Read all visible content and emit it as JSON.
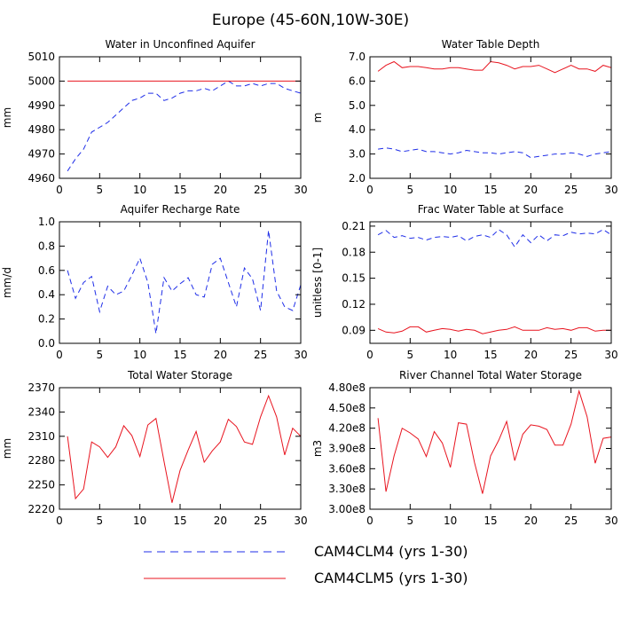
{
  "title": "Europe (45-60N,10W-30E)",
  "colors": {
    "clm4": "#1f2ee8",
    "clm5": "#e8141f"
  },
  "legend": [
    {
      "label": "CAM4CLM4 (yrs 1-30)",
      "style": "dashed",
      "color": "#1f2ee8"
    },
    {
      "label": "CAM4CLM5 (yrs 1-30)",
      "style": "solid",
      "color": "#e8141f"
    }
  ],
  "chart_data": [
    {
      "type": "line",
      "title": "Water in Unconfined Aquifer",
      "ylabel": "mm",
      "xlim": [
        0,
        30
      ],
      "ylim": [
        4960,
        5010
      ],
      "xticks": [
        0,
        5,
        10,
        15,
        20,
        25,
        30
      ],
      "yticks": [
        4960,
        4970,
        4980,
        4990,
        5000,
        5010
      ],
      "ytick_labels": [
        "4960",
        "4970",
        "4980",
        "4990",
        "5000",
        "5010"
      ],
      "x": [
        1,
        2,
        3,
        4,
        5,
        6,
        7,
        8,
        9,
        10,
        11,
        12,
        13,
        14,
        15,
        16,
        17,
        18,
        19,
        20,
        21,
        22,
        23,
        24,
        25,
        26,
        27,
        28,
        29,
        30
      ],
      "series": [
        {
          "name": "CAM4CLM4 (yrs 1-30)",
          "style": "dashed",
          "values": [
            4963,
            4968,
            4972,
            4979,
            4981,
            4983,
            4986,
            4989,
            4992,
            4993,
            4995,
            4995,
            4992,
            4993,
            4995,
            4996,
            4996,
            4997,
            4996,
            4998,
            5000,
            4998,
            4998,
            4999,
            4998,
            4999,
            4999,
            4997,
            4996,
            4995
          ]
        },
        {
          "name": "CAM4CLM5 (yrs 1-30)",
          "style": "solid",
          "values": [
            5000,
            5000,
            5000,
            5000,
            5000,
            5000,
            5000,
            5000,
            5000,
            5000,
            5000,
            5000,
            5000,
            5000,
            5000,
            5000,
            5000,
            5000,
            5000,
            5000,
            5000,
            5000,
            5000,
            5000,
            5000,
            5000,
            5000,
            5000,
            5000,
            5000
          ]
        }
      ]
    },
    {
      "type": "line",
      "title": "Water Table Depth",
      "ylabel": "m",
      "xlim": [
        0,
        30
      ],
      "ylim": [
        2.0,
        7.0
      ],
      "xticks": [
        0,
        5,
        10,
        15,
        20,
        25,
        30
      ],
      "yticks": [
        2,
        3,
        4,
        5,
        6,
        7
      ],
      "ytick_labels": [
        "2.0",
        "3.0",
        "4.0",
        "5.0",
        "6.0",
        "7.0"
      ],
      "x": [
        1,
        2,
        3,
        4,
        5,
        6,
        7,
        8,
        9,
        10,
        11,
        12,
        13,
        14,
        15,
        16,
        17,
        18,
        19,
        20,
        21,
        22,
        23,
        24,
        25,
        26,
        27,
        28,
        29,
        30
      ],
      "series": [
        {
          "name": "CAM4CLM4 (yrs 1-30)",
          "style": "dashed",
          "values": [
            3.2,
            3.25,
            3.2,
            3.1,
            3.15,
            3.2,
            3.1,
            3.1,
            3.05,
            3.0,
            3.05,
            3.15,
            3.1,
            3.05,
            3.05,
            3.0,
            3.05,
            3.1,
            3.05,
            2.85,
            2.9,
            2.95,
            3.0,
            3.0,
            3.05,
            3.0,
            2.9,
            3.0,
            3.05,
            3.1
          ]
        },
        {
          "name": "CAM4CLM5 (yrs 1-30)",
          "style": "solid",
          "values": [
            6.4,
            6.65,
            6.8,
            6.55,
            6.6,
            6.6,
            6.55,
            6.5,
            6.5,
            6.55,
            6.55,
            6.5,
            6.45,
            6.45,
            6.8,
            6.75,
            6.65,
            6.5,
            6.6,
            6.6,
            6.65,
            6.5,
            6.35,
            6.5,
            6.65,
            6.5,
            6.5,
            6.4,
            6.65,
            6.55
          ]
        }
      ]
    },
    {
      "type": "line",
      "title": "Aquifer Recharge Rate",
      "ylabel": "mm/d",
      "xlim": [
        0,
        30
      ],
      "ylim": [
        0.0,
        1.0
      ],
      "xticks": [
        0,
        5,
        10,
        15,
        20,
        25,
        30
      ],
      "yticks": [
        0,
        0.2,
        0.4,
        0.6,
        0.8,
        1.0
      ],
      "ytick_labels": [
        "0.0",
        "0.2",
        "0.4",
        "0.6",
        "0.8",
        "1.0"
      ],
      "x": [
        1,
        2,
        3,
        4,
        5,
        6,
        7,
        8,
        9,
        10,
        11,
        12,
        13,
        14,
        15,
        16,
        17,
        18,
        19,
        20,
        21,
        22,
        23,
        24,
        25,
        26,
        27,
        28,
        29,
        30
      ],
      "series": [
        {
          "name": "CAM4CLM4 (yrs 1-30)",
          "style": "dashed",
          "values": [
            0.6,
            0.37,
            0.5,
            0.55,
            0.26,
            0.47,
            0.4,
            0.43,
            0.56,
            0.7,
            0.5,
            0.08,
            0.54,
            0.43,
            0.49,
            0.54,
            0.4,
            0.38,
            0.65,
            0.7,
            0.5,
            0.3,
            0.62,
            0.53,
            0.27,
            0.93,
            0.43,
            0.3,
            0.27,
            0.48
          ]
        },
        {
          "name": "CAM4CLM5 (yrs 1-30)",
          "style": "solid",
          "values": [
            0,
            0,
            0,
            0,
            0,
            0,
            0,
            0,
            0,
            0,
            0,
            0,
            0,
            0,
            0,
            0,
            0,
            0,
            0,
            0,
            0,
            0,
            0,
            0,
            0,
            0,
            0,
            0,
            0,
            0
          ]
        }
      ]
    },
    {
      "type": "line",
      "title": "Frac Water Table at Surface",
      "ylabel": "unitless [0-1]",
      "xlim": [
        0,
        30
      ],
      "ylim": [
        0.075,
        0.215
      ],
      "xticks": [
        0,
        5,
        10,
        15,
        20,
        25,
        30
      ],
      "yticks": [
        0.09,
        0.12,
        0.15,
        0.18,
        0.21
      ],
      "ytick_labels": [
        "0.09",
        "0.12",
        "0.15",
        "0.18",
        "0.21"
      ],
      "x": [
        1,
        2,
        3,
        4,
        5,
        6,
        7,
        8,
        9,
        10,
        11,
        12,
        13,
        14,
        15,
        16,
        17,
        18,
        19,
        20,
        21,
        22,
        23,
        24,
        25,
        26,
        27,
        28,
        29,
        30
      ],
      "series": [
        {
          "name": "CAM4CLM4 (yrs 1-30)",
          "style": "dashed",
          "values": [
            0.2,
            0.205,
            0.197,
            0.199,
            0.196,
            0.197,
            0.194,
            0.197,
            0.198,
            0.197,
            0.199,
            0.193,
            0.198,
            0.2,
            0.197,
            0.206,
            0.2,
            0.186,
            0.2,
            0.191,
            0.2,
            0.193,
            0.2,
            0.199,
            0.203,
            0.201,
            0.202,
            0.201,
            0.206,
            0.2
          ]
        },
        {
          "name": "CAM4CLM5 (yrs 1-30)",
          "style": "solid",
          "values": [
            0.092,
            0.088,
            0.087,
            0.089,
            0.094,
            0.094,
            0.088,
            0.09,
            0.092,
            0.091,
            0.089,
            0.091,
            0.09,
            0.086,
            0.088,
            0.09,
            0.091,
            0.094,
            0.09,
            0.09,
            0.09,
            0.093,
            0.091,
            0.092,
            0.09,
            0.093,
            0.093,
            0.089,
            0.09,
            0.09
          ]
        }
      ]
    },
    {
      "type": "line",
      "title": "Total Water Storage",
      "ylabel": "mm",
      "xlim": [
        0,
        30
      ],
      "ylim": [
        2220,
        2370
      ],
      "xticks": [
        0,
        5,
        10,
        15,
        20,
        25,
        30
      ],
      "yticks": [
        2220,
        2250,
        2280,
        2310,
        2340,
        2370
      ],
      "ytick_labels": [
        "2220",
        "2250",
        "2280",
        "2310",
        "2340",
        "2370"
      ],
      "x": [
        1,
        2,
        3,
        4,
        5,
        6,
        7,
        8,
        9,
        10,
        11,
        12,
        13,
        14,
        15,
        16,
        17,
        18,
        19,
        20,
        21,
        22,
        23,
        24,
        25,
        26,
        27,
        28,
        29,
        30
      ],
      "series": [
        {
          "name": "CAM4CLM5 (yrs 1-30)",
          "style": "solid",
          "values": [
            2310,
            2233,
            2245,
            2303,
            2297,
            2284,
            2297,
            2323,
            2311,
            2285,
            2324,
            2332,
            2279,
            2228,
            2268,
            2293,
            2316,
            2278,
            2292,
            2303,
            2331,
            2322,
            2303,
            2300,
            2334,
            2360,
            2334,
            2287,
            2320,
            2310
          ]
        }
      ]
    },
    {
      "type": "line",
      "title": "River Channel Total Water Storage",
      "ylabel": "m3",
      "xlim": [
        0,
        30
      ],
      "ylim": [
        300000000,
        480000000
      ],
      "xticks": [
        0,
        5,
        10,
        15,
        20,
        25,
        30
      ],
      "yticks": [
        300000000,
        330000000,
        360000000,
        390000000,
        420000000,
        450000000,
        480000000
      ],
      "ytick_labels": [
        "3.00e8",
        "3.30e8",
        "3.60e8",
        "3.90e8",
        "4.20e8",
        "4.50e8",
        "4.80e8"
      ],
      "x": [
        1,
        2,
        3,
        4,
        5,
        6,
        7,
        8,
        9,
        10,
        11,
        12,
        13,
        14,
        15,
        16,
        17,
        18,
        19,
        20,
        21,
        22,
        23,
        24,
        25,
        26,
        27,
        28,
        29,
        30
      ],
      "series": [
        {
          "name": "CAM4CLM5 (yrs 1-30)",
          "style": "solid",
          "values": [
            435000000,
            326000000,
            379000000,
            420000000,
            413000000,
            404000000,
            378000000,
            415000000,
            398000000,
            362000000,
            428000000,
            426000000,
            369000000,
            323000000,
            379000000,
            402000000,
            430000000,
            372000000,
            411000000,
            425000000,
            423000000,
            418000000,
            395000000,
            395000000,
            426000000,
            475000000,
            437000000,
            368000000,
            405000000,
            407000000
          ]
        }
      ]
    }
  ]
}
